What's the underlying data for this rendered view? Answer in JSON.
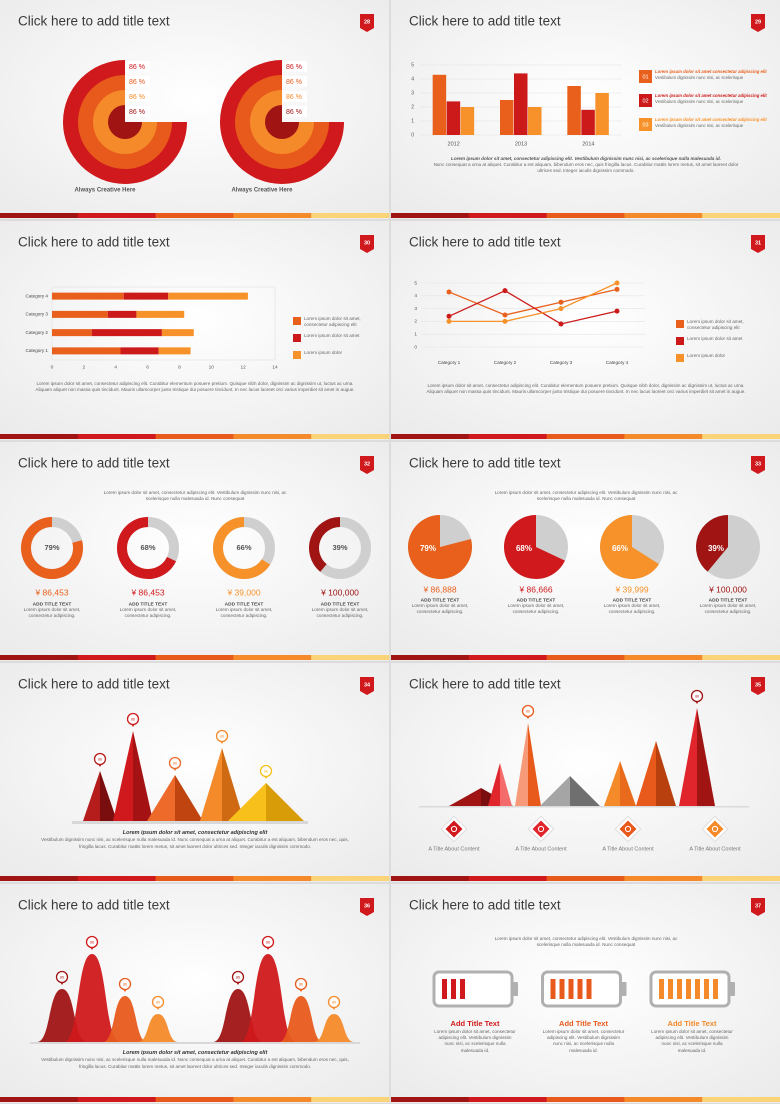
{
  "slides": [
    {
      "title": "Click here to add title text",
      "number": "28",
      "rings": [
        {
          "labels": [
            "86 %",
            "86 %",
            "86 %",
            "86 %"
          ],
          "caption": "Always Creative Here"
        },
        {
          "labels": [
            "86 %",
            "86 %",
            "86 %",
            "86 %"
          ],
          "caption": "Always Creative Here"
        }
      ]
    },
    {
      "title": "Click here to add title text",
      "number": "29",
      "chart_data": {
        "type": "bar",
        "categories": [
          "2012",
          "2013",
          "2014"
        ],
        "series": [
          {
            "name": "Lorem ipsum dolor sit amet consectetur adipiscing elit",
            "index": "01",
            "description": "Vestibulum dignissim nunc nisi, ac scelerisque",
            "color": "#e8601c",
            "values": [
              4.3,
              2.5,
              3.5
            ]
          },
          {
            "name": "Lorem ipsum dolor sit amet consectetur adipiscing elit",
            "index": "02",
            "description": "Vestibulum dignissim nunc nisi, ac scelerisque",
            "color": "#cc1a1a",
            "values": [
              2.4,
              4.4,
              1.8
            ]
          },
          {
            "name": "Lorem ipsum dolor sit amet consectetur adipiscing elit",
            "index": "03",
            "description": "Vestibulum dignissim nunc nisi, ac scelerisque",
            "color": "#f7922a",
            "values": [
              2.0,
              2.0,
              3.0
            ]
          }
        ],
        "ylim": [
          0,
          5
        ],
        "yticks": [
          0,
          1,
          2,
          3,
          4,
          5
        ],
        "grid": true
      },
      "caption": {
        "bold": "Lorem ipsum dolor sit amet, consectetur adipiscing elit. Vestibulum dignissim nunc nisi, ac scelerisque nulla malesuada id.",
        "body": "Nunc consequat a urna at aliquet. Curabitur a est aliquam, bibendum eros nec, quis fringilla lacus. Curabitur mattis lorem metus, sit amet laoreet dolor ultrices sed. Integer iaculis dignissim commodo."
      }
    },
    {
      "title": "Click here to add title text",
      "number": "30",
      "chart_data": {
        "type": "barh",
        "categories": [
          "Category 1",
          "Category 2",
          "Category 3",
          "Category 4"
        ],
        "series": [
          {
            "name": "Lorem ipsum dolor sit amet, consectetur adipiscing elit",
            "color": "#e8601c",
            "values": [
              4.3,
              2.5,
              3.5,
              4.5
            ]
          },
          {
            "name": "Lorem ipsum dolor sit amet",
            "color": "#cc1a1a",
            "values": [
              2.4,
              4.4,
              1.8,
              2.8
            ]
          },
          {
            "name": "Lorem ipsum dolor",
            "color": "#f7922a",
            "values": [
              2.0,
              2.0,
              3.0,
              5.0
            ]
          }
        ],
        "xlim": [
          0,
          14
        ],
        "xticks": [
          0,
          2,
          4,
          6,
          8,
          10,
          12,
          14
        ]
      },
      "caption": "Lorem ipsum dolor sit amet, consectetur adipiscing elit. Curabitur elementum posuere pretium. Quisque nibh dolor, dignissim ac dignissim ut, luctus ac urna. Aliquam aliquet non massa quis tincidunt. Mauris ullamcorper justo tristique dui posuere tincidunt. In nec lacus laoreet orci varius imperdiet sit amet in augue."
    },
    {
      "title": "Click here to add title text",
      "number": "31",
      "chart_data": {
        "type": "line",
        "categories": [
          "Category 1",
          "Category 2",
          "Category 3",
          "Category 4"
        ],
        "series": [
          {
            "name": "Lorem ipsum dolor sit amet, consectetur adipiscing elit",
            "color": "#e8601c",
            "values": [
              4.3,
              2.5,
              3.5,
              4.5
            ]
          },
          {
            "name": "Lorem ipsum dolor sit amet",
            "color": "#cc1a1a",
            "values": [
              2.4,
              4.4,
              1.8,
              2.8
            ]
          },
          {
            "name": "Lorem ipsum dolor",
            "color": "#f7922a",
            "values": [
              2.0,
              2.0,
              3.0,
              5.0
            ]
          }
        ],
        "ylim": [
          0,
          5
        ],
        "yticks": [
          0,
          1,
          2,
          3,
          4,
          5
        ],
        "grid": true
      },
      "caption": "Lorem ipsum dolor sit amet, consectetur adipiscing elit. Curabitur elementum posuere pretium. Quisque nibh dolor, dignissim ac dignissim ut, luctus ac urna. Aliquam aliquet non massa quis tincidunt. Mauris ullamcorper justo tristique dui posuere tincidunt. In nec lacus laoreet orci varius imperdiet sit amet in augue."
    },
    {
      "title": "Click here to add title text",
      "number": "32",
      "intro": "Lorem ipsum dolor sit amet, consectetur adipiscing elit. Vestibulum dignissim nunc nisi, ac scelerisque nulla malesuada id. Nunc consequat",
      "chart_data": {
        "type": "donut",
        "values": [
          79,
          68,
          66,
          39
        ],
        "value_labels": [
          "79%",
          "68%",
          "66%",
          "39%"
        ],
        "colors": [
          "#e8601c",
          "#d0191c",
          "#f7922a",
          "#a01414"
        ]
      },
      "items": [
        {
          "amount": "¥ 86,453",
          "title": "ADD TITLE TEXT",
          "text": "Lorem ipsum dolor sit amet, consectetur adipiscing."
        },
        {
          "amount": "¥ 86,453",
          "title": "ADD TITLE TEXT",
          "text": "Lorem ipsum dolor sit amet, consectetur adipiscing."
        },
        {
          "amount": "¥ 39,000",
          "title": "ADD TITLE TEXT",
          "text": "Lorem ipsum dolor sit amet, consectetur adipiscing."
        },
        {
          "amount": "¥ 100,000",
          "title": "ADD TITLE TEXT",
          "text": "Lorem ipsum dolor sit amet, consectetur adipiscing."
        }
      ]
    },
    {
      "title": "Click here to add title text",
      "number": "33",
      "intro": "Lorem ipsum dolor sit amet, consectetur adipiscing elit. Vestibulum dignissim nunc nisi, ac scelerisque nulla malesuada id. Nunc consequat",
      "chart_data": {
        "type": "pie",
        "values": [
          79,
          68,
          66,
          39
        ],
        "value_labels": [
          "79%",
          "68%",
          "66%",
          "39%"
        ],
        "colors": [
          "#e8601c",
          "#d0191c",
          "#f7922a",
          "#a01414"
        ]
      },
      "items": [
        {
          "amount": "¥ 86,888",
          "title": "ADD TITLE TEXT",
          "text": "Lorem ipsum dolor sit amet, consectetur adipiscing."
        },
        {
          "amount": "¥ 86,666",
          "title": "ADD TITLE TEXT",
          "text": "Lorem ipsum dolor sit amet, consectetur adipiscing."
        },
        {
          "amount": "¥ 39,999",
          "title": "ADD TITLE TEXT",
          "text": "Lorem ipsum dolor sit amet, consectetur adipiscing."
        },
        {
          "amount": "¥ 100,000",
          "title": "ADD TITLE TEXT",
          "text": "Lorem ipsum dolor sit amet, consectetur adipiscing."
        }
      ]
    },
    {
      "title": "Click here to add title text",
      "number": "34",
      "pins": [
        "86",
        "86",
        "86",
        "86",
        "86"
      ],
      "caption": {
        "bold": "Lorem ipsum dolor sit amet, consectetur adipiscing elit",
        "body": "Vestibulum dignissim nunc nisi, ac scelerisque nulla malesuada id. Nunc consequat a urna at aliquet. Curabitur a est aliquam, bibendum eros nec, quis, fringilla lacus. Curabitur mattis lorem metus, sit amet laoreet dolor ultrices sed. Integer iaculis dignissim commodo."
      }
    },
    {
      "title": "Click here to add title text",
      "number": "35",
      "pins": [
        "86",
        "86"
      ],
      "items": [
        "A Title About Content",
        "A Title About Content",
        "A Title About Content",
        "A Title About Content"
      ]
    },
    {
      "title": "Click here to add title text",
      "number": "36",
      "pins": [
        "86",
        "86",
        "86",
        "86",
        "86",
        "86",
        "86",
        "86"
      ],
      "caption": {
        "bold": "Lorem ipsum dolor sit amet, consectetur adipiscing elit",
        "body": "Vestibulum dignissim nunc nisi, ac scelerisque nulla malesuada id. Nunc consequat a urna at aliquet. Curabitur a est aliquam, bibendum eros nec, quis, fringilla lacus. Curabitur mattis lorem metus, sit amet laoreet dolor ultrices sed. Integer iaculis dignissim commodo."
      }
    },
    {
      "title": "Click here to add title text",
      "number": "37",
      "intro": "Lorem ipsum dolor sit amet, consectetur adipiscing elit. Vestibulum dignissim nunc nisi, ac scelerisque nulla malesuada id. Nunc consequat",
      "items": [
        {
          "title": "Add Title Text",
          "text": "Lorem ipsum dolor sit amet, consectetur adipiscing elit. Vestibulum dignissim nunc nisi, ac scelerisque nulla malesuada id."
        },
        {
          "title": "Add Title Text",
          "text": "Lorem ipsum dolor sit amet, consectetur adipiscing elit. Vestibulum dignissim nunc nisi, ac scelerisque nulla malesuada id."
        },
        {
          "title": "Add Title Text",
          "text": "Lorem ipsum dolor sit amet, consectetur adipiscing elit. Vestibulum dignissim nunc nisi, ac scelerisque nulla malesuada id."
        }
      ]
    }
  ]
}
